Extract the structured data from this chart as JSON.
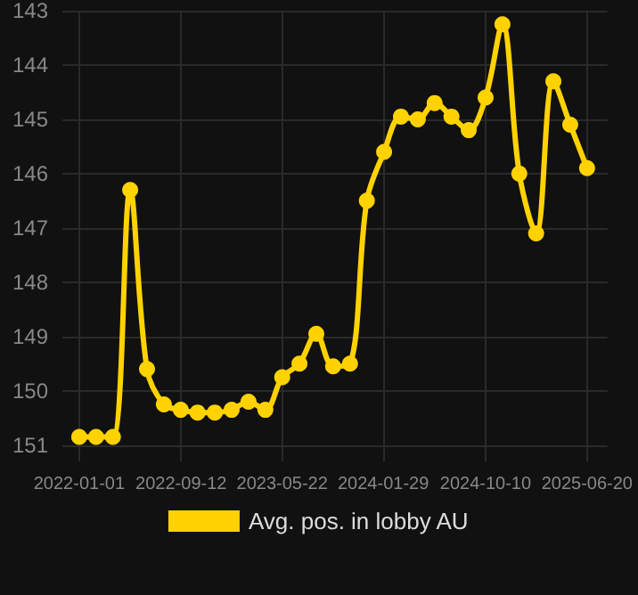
{
  "chart_data": {
    "type": "line",
    "x": [
      "2022-01-01",
      "2022-02-12",
      "2022-03-26",
      "2022-05-08",
      "2022-06-19",
      "2022-07-31",
      "2022-09-11",
      "2022-10-23",
      "2022-12-05",
      "2023-01-16",
      "2023-02-27",
      "2023-04-10",
      "2023-05-22",
      "2023-07-04",
      "2023-08-15",
      "2023-09-26",
      "2023-11-07",
      "2023-12-19",
      "2024-01-31",
      "2024-03-13",
      "2024-04-24",
      "2024-06-05",
      "2024-07-17",
      "2024-08-29",
      "2024-10-10",
      "2024-11-21",
      "2025-01-02",
      "2025-02-13",
      "2025-03-28",
      "2025-05-09",
      "2025-06-20"
    ],
    "series": [
      {
        "name": "Avg. pos. in lobby AU",
        "color": "#ffd200",
        "values": [
          150.85,
          150.85,
          150.85,
          146.3,
          149.6,
          150.25,
          150.35,
          150.4,
          150.4,
          150.35,
          150.2,
          150.35,
          149.75,
          149.5,
          148.95,
          149.55,
          149.5,
          146.5,
          145.6,
          144.95,
          145.0,
          144.7,
          144.95,
          145.2,
          144.6,
          143.25,
          146.0,
          147.1,
          144.3,
          145.1,
          145.9
        ]
      }
    ],
    "xlim": [
      "2021-11-20",
      "2025-08-10"
    ],
    "xticks": [
      "2022-01-01",
      "2022-09-12",
      "2023-05-22",
      "2024-01-29",
      "2024-10-10",
      "2025-06-20"
    ],
    "ylim": [
      151.3,
      143
    ],
    "yticks": [
      143,
      144,
      145,
      146,
      147,
      148,
      149,
      150,
      151
    ],
    "grid": true,
    "legend": "bottom",
    "marker": "circle",
    "line_style": "solid"
  }
}
